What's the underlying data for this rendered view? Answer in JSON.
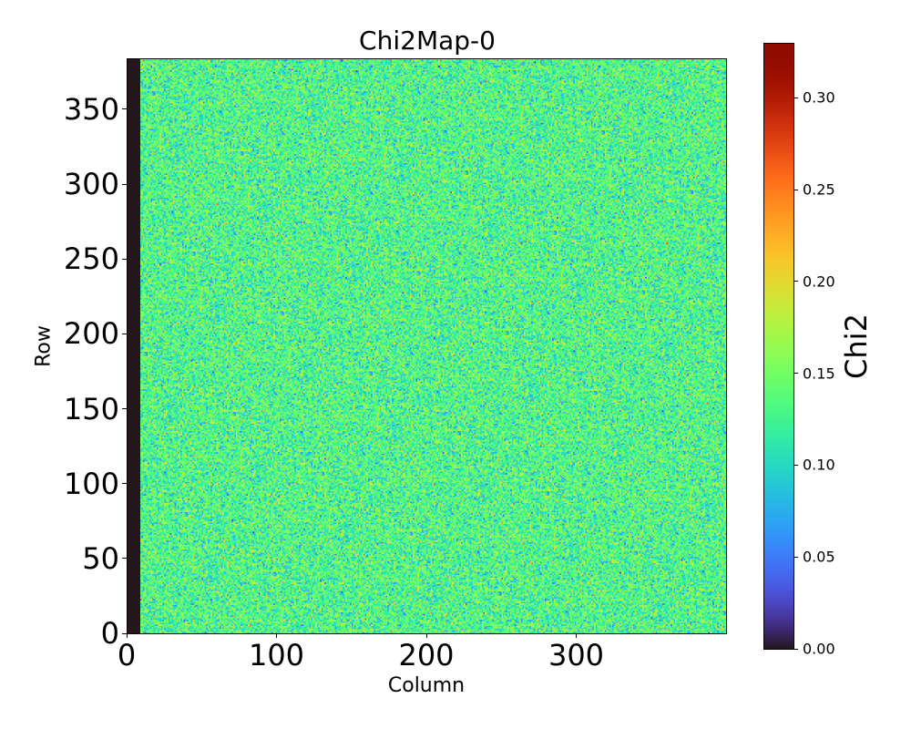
{
  "chart_data": {
    "type": "heatmap",
    "title": "Chi2Map-0",
    "xlabel": "Column",
    "ylabel": "Row",
    "colorbar_label": "Chi2",
    "colormap": "turbo",
    "xlim": [
      0,
      400
    ],
    "ylim": [
      0,
      384
    ],
    "clim": [
      0,
      0.33
    ],
    "x_ticks": [
      0,
      100,
      200,
      300
    ],
    "y_ticks": [
      0,
      50,
      100,
      150,
      200,
      250,
      300,
      350
    ],
    "colorbar_ticks": [
      "0.00",
      "0.05",
      "0.10",
      "0.15",
      "0.20",
      "0.25",
      "0.30"
    ],
    "zero_columns": [
      0,
      8
    ],
    "value_mean": 0.13,
    "value_std": 0.03
  }
}
